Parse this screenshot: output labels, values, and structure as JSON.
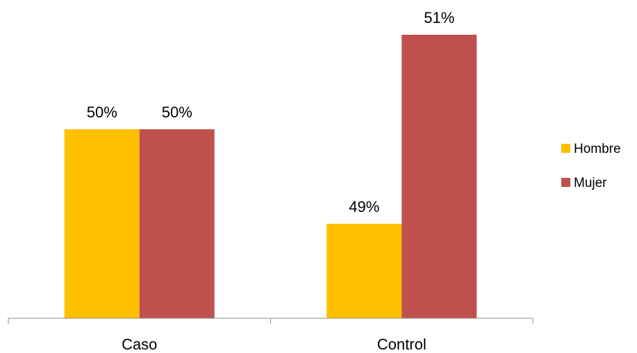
{
  "chart_data": {
    "type": "bar",
    "categories": [
      "Caso",
      "Control"
    ],
    "series": [
      {
        "name": "Hombre",
        "values": [
          50,
          49
        ],
        "labels": [
          "50%",
          "49%"
        ],
        "color": "#FFC000"
      },
      {
        "name": "Mujer",
        "values": [
          50,
          51
        ],
        "labels": [
          "50%",
          "51%"
        ],
        "color": "#C0504D"
      }
    ],
    "title": "",
    "xlabel": "",
    "ylabel": "",
    "ylim": [
      48,
      51.5
    ],
    "grid": false,
    "legend": "right"
  }
}
